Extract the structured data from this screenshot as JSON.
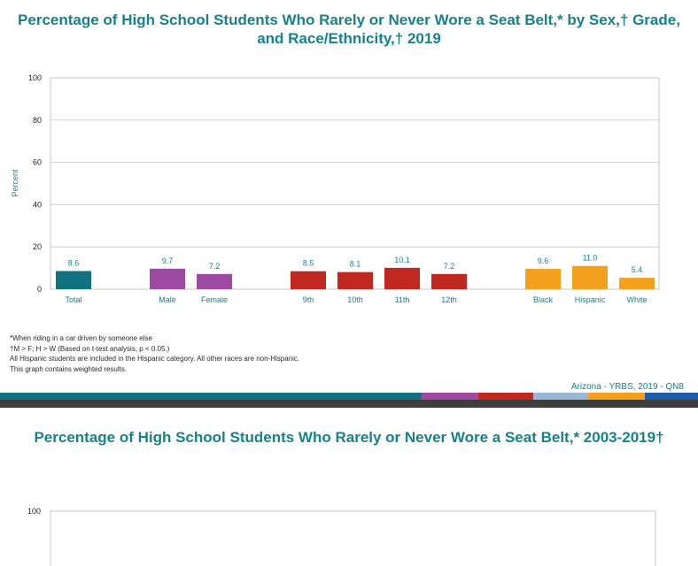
{
  "chart1": {
    "title_line1": "Percentage of High School Students Who Rarely or Never Wore a Seat Belt,* by Sex,† Grade,",
    "title_line2": "and Race/Ethnicity,† 2019",
    "chart_data": {
      "type": "bar",
      "ylabel": "Percent",
      "xlabel": "",
      "ylim": [
        0,
        100
      ],
      "yticks": [
        0,
        20,
        40,
        60,
        80,
        100
      ],
      "grid": true,
      "categories": [
        "Total",
        "Male",
        "Female",
        "9th",
        "10th",
        "11th",
        "12th",
        "Black",
        "Hispanic",
        "White"
      ],
      "values": [
        8.6,
        9.7,
        7.2,
        8.5,
        8.1,
        10.1,
        7.2,
        9.6,
        11.0,
        5.4
      ],
      "value_labels": [
        "8.6",
        "9.7",
        "7.2",
        "8.5",
        "8.1",
        "10.1",
        "7.2",
        "9.6",
        "11.0",
        "5.4"
      ],
      "groups": [
        "Total",
        "Sex",
        "Sex",
        "Grade",
        "Grade",
        "Grade",
        "Grade",
        "Race",
        "Race",
        "Race"
      ],
      "group_colors": {
        "Total": "#11727f",
        "Sex": "#9c4aa2",
        "Grade": "#c0291f",
        "Race": "#f3a01e"
      }
    },
    "footnotes": [
      "*When riding in a car driven by someone else",
      "†M > F; H > W (Based on t-test analysis, p < 0.05.)",
      "All Hispanic students are included in the Hispanic category.  All other races are non-Hispanic.",
      "This graph contains weighted results."
    ],
    "source": "Arizona   - YRBS, 2019 - QN8"
  },
  "band_colors": [
    "#11727f",
    "#9c4aa2",
    "#c0291f",
    "#9cb8d6",
    "#f3a01e",
    "#1e5ea8"
  ],
  "chart2": {
    "title": "Percentage of High School Students Who Rarely or Never Wore a Seat Belt,* 2003-2019†",
    "chart_data": {
      "type": "line",
      "ylim": [
        0,
        100
      ],
      "visible_yticks": [
        100
      ]
    }
  }
}
